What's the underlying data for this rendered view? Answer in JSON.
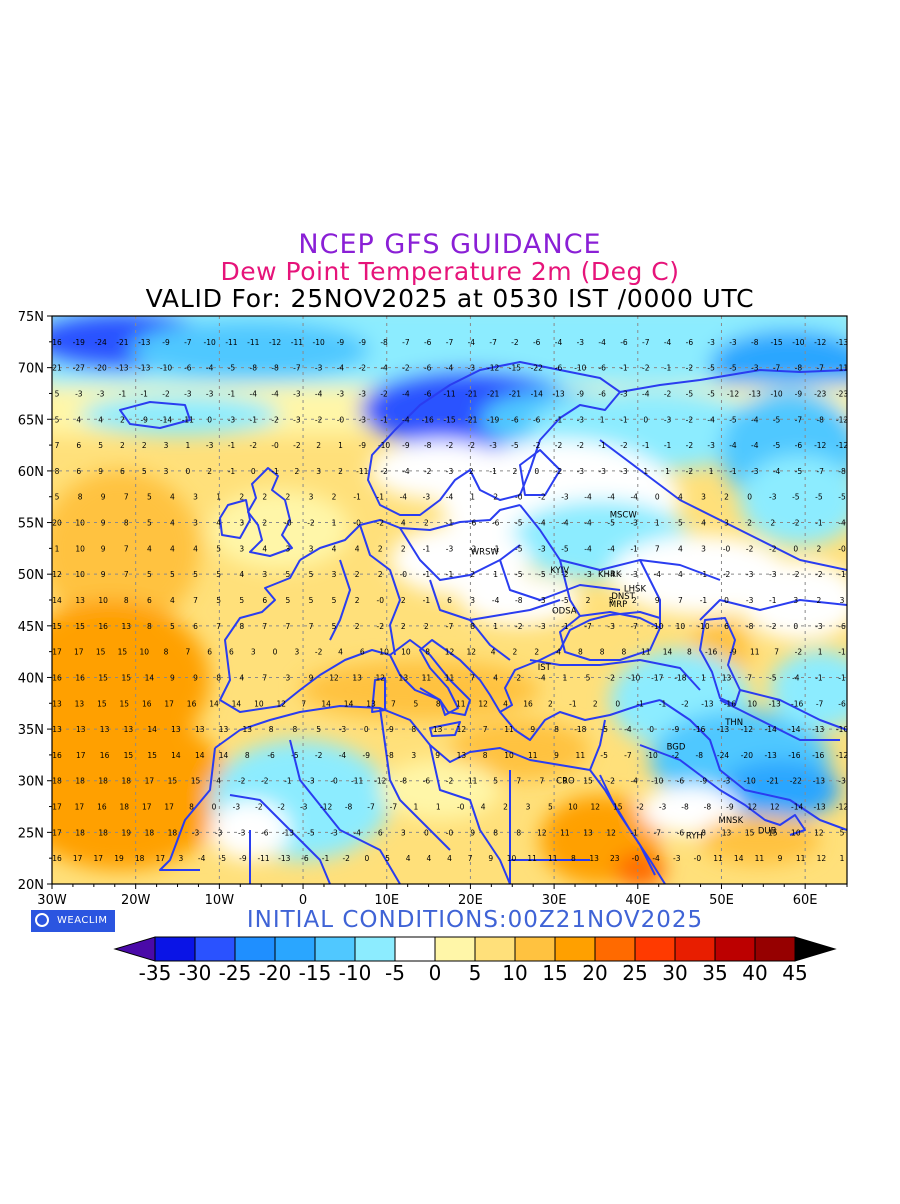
{
  "title": {
    "line1": "NCEP GFS GUIDANCE",
    "line2": "Dew Point Temperature 2m (Deg C)",
    "line3": "VALID For: 25NOV2025 at 0530 IST /0000 UTC"
  },
  "colors": {
    "title1": "#8a1fd6",
    "title2": "#e6147a",
    "init": "#3f63d6",
    "border": "#2a3df0"
  },
  "map": {
    "lat_labels": [
      "75N",
      "70N",
      "65N",
      "60N",
      "55N",
      "50N",
      "45N",
      "40N",
      "35N",
      "30N",
      "25N",
      "20N"
    ],
    "lon_labels": [
      "30W",
      "20W",
      "10W",
      "0",
      "10E",
      "20E",
      "30E",
      "40E",
      "50E",
      "60E"
    ],
    "cities": [
      {
        "name": "MSCW",
        "lon": 37.6,
        "lat": 55.8
      },
      {
        "name": "WRSW",
        "lon": 21.0,
        "lat": 52.2
      },
      {
        "name": "KYIV",
        "lon": 30.5,
        "lat": 50.4
      },
      {
        "name": "KHRK",
        "lon": 36.2,
        "lat": 50.0
      },
      {
        "name": "LHSK",
        "lon": 39.3,
        "lat": 48.6
      },
      {
        "name": "DNST",
        "lon": 37.8,
        "lat": 47.9
      },
      {
        "name": "MRP",
        "lon": 37.5,
        "lat": 47.1
      },
      {
        "name": "ODSA",
        "lon": 30.7,
        "lat": 46.5
      },
      {
        "name": "IST",
        "lon": 29.0,
        "lat": 41.0
      },
      {
        "name": "THN",
        "lon": 51.4,
        "lat": 35.7
      },
      {
        "name": "BGD",
        "lon": 44.4,
        "lat": 33.3
      },
      {
        "name": "CRO",
        "lon": 31.2,
        "lat": 30.0
      },
      {
        "name": "MNSK",
        "lon": 50.6,
        "lat": 26.2
      },
      {
        "name": "RYH",
        "lon": 46.7,
        "lat": 24.7
      },
      {
        "name": "DUB",
        "lon": 55.3,
        "lat": 25.2
      }
    ],
    "grid_values": [
      "16 -19 -24 -21 -13 -9 -7 -10 -11 -11 -12 -11 -10 -9 -9 -8 -7 -6 -7 -4 -7 -2 -6 -4 -3 -4 -6 -7 -4 -6 -3 -3 -8 -15 -10 -12 -13",
      "21 -27 -20 -13 -13 -10 -6 -4 -5 -8 -8 -7 -3 -4 -2 -4 -2 -6 -4 -3 -12 -15 -22 -6 -10 -6 -1 -2 -1 -2 -5 -5 -3 -7 -8 -7 -11",
      "5 -3 -3 -1 -1 -2 -3 -3 -1 -4 -4 -3 -4 -3 -3 -2 -4 -6 -11 -21 -21 -21 -14 -13 -9 -6 -3 -4 -2 -5 -5 -12 -13 -10 -9 -23 -23",
      "5 4 4 2 -9 -14 -11 0 -3 -1 -2 -3 -2 -0 -3 -1 -4 -16 -15 -21 -19 -6 -6 -1 -3 1 -1 0 -3 -2 -4 -5 -4 -5 -7 -8 -12",
      "7 6 5 2 2 3 1 -3 -1 -2 -0 -2 2 1 -9 -10 -9 -8 -2 -2 -3 -5 -2 -2 -2 -1 -2 -1 -1 -2 -3 -4 -4 -5 -6 -12 -12",
      "8 6 9 6 5 3 0 2 -1 0 -1 2 3 2 -11 -2 -4 -2 -3 2 -1 2 0 -2 -3 -3 -3 1 1 -2 1 -1 -3 -4 -5 -7 -8",
      "5 8 9 7 5 4 3 1 2 2 2 3 2 -1 -1 -4 -3 -4 1 2 -0 -2 -3 -4 -4 -4 0 4 3 2 0 -3 -5 -5 -5",
      "20 10 9 8 5 4 3 4 3 2 -0 -2 1 -0 -2 4 2 -1 -6 -6 -5 -4 -4 -4 -5 -3 1 5 4 3 2 2 -2 -1 -4",
      "1 10 9 7 4 4 4 5 3 4 3 3 4 4 2 2 -1 -3 -2 -1 -5 -3 -5 -4 -4 -1 7 4 3 -0 -2 -2 0 2 -0",
      "12 10 9 7 5 5 5 5 4 3 5 5 3 2 2 -0 -1 -1 2 1 -5 -5 -2 -3 -4 -3 -4 4 -1 -2 -3 -3 -2 -2 -1",
      "14 13 10 8 6 4 7 5 5 6 5 5 5 2 -0 2 -1 6 3 -4 -8 -3 -5 2 5 2 9 7 -1 0 -3 -1 3 2 3",
      "15 15 16 13 8 5 6 7 8 7 7 7 5 2 -2 2 2 -7 8 1 -2 -3 -1 -7 -3 -7 -10 10 -10 6 -8 -2 0 -3 -6",
      "17 17 15 15 10 8 7 6 6 3 0 3 -2 4 6 10 10 8 12 12 4 2 2 4 8 8 8 11 14 8 -16 -9 11 7 -2 1 -1",
      "16 16 15 15 14 9 9 8 4 7 3 9 12 13 12 13 11 11 7 4 2 -4 1 5 -2 -10 -17 -18 1 13 7 -5 -4 -1 -1",
      "13 13 15 15 16 17 16 14 14 10 12 7 14 14 13 7 5 8 11 12 4 16 2 -1 2 0 -1 -1 -2 -13 -16 10 -13 -16 -7 -6",
      "13 13 13 13 14 13 13 13 13 8 8 5 -3 0 -9 8 13 12 7 11 9 8 -18 -5 -4 0 -9 -16 -13 -12 -14 -14 -13 -10",
      "16 17 16 15 15 14 14 14 8 -6 -5 -2 -4 -9 -8 3 9 13 8 10 11 9 11 -5 -7 -10 -2 -8 -24 -20 -13 -16 -16 -12",
      "18 18 18 18 17 15 15 4 -2 -2 -1 -3 -0 -11 -12 -8 -6 -2 11 5 7 7 9 15 -2 -4 -10 -6 -9 -3 -10 -21 -22 -13 -3",
      "17 17 16 18 17 17 8 0 -3 -2 -2 -3 -12 -8 -7 -7 1 1 -0 4 2 3 5 10 12 15 -2 -3 -8 -8 -9 12 12 -14 -13 -12",
      "17 18 18 19 18 18 -3 -3 -3 -6 -13 -5 -3 -4 6 3 0 -0 9 8 8 12 11 13 12 -1 -7 -6 8 13 15 15 10 12 5",
      "16 17 17 19 18 17 3 -4 -5 -9 -11 -13 -6 -1 -2 0 5 4 4 4 7 9 10 11 11 8 13 23 -0 -4 -3 -0 11 14 11 9 11 12 1"
    ]
  },
  "branding": {
    "logo_text": "WEACLIM",
    "initial_conditions": "INITIAL CONDITIONS:00Z21NOV2025"
  },
  "colorbar": {
    "labels": [
      "-35",
      "-30",
      "-25",
      "-20",
      "-15",
      "-10",
      "-5",
      "0",
      "5",
      "10",
      "15",
      "20",
      "25",
      "30",
      "35",
      "40",
      "45"
    ],
    "colors": [
      "#0a14e6",
      "#2a52ff",
      "#1f8fff",
      "#2aa6ff",
      "#50c8ff",
      "#8cecff",
      "#ffffff",
      "#fff6a8",
      "#ffe07a",
      "#ffc240",
      "#ffa000",
      "#ff6a00",
      "#ff3a00",
      "#e81e00",
      "#bc0000",
      "#960000"
    ],
    "low_color": "#4a0aa8",
    "high_color": "#000000"
  }
}
